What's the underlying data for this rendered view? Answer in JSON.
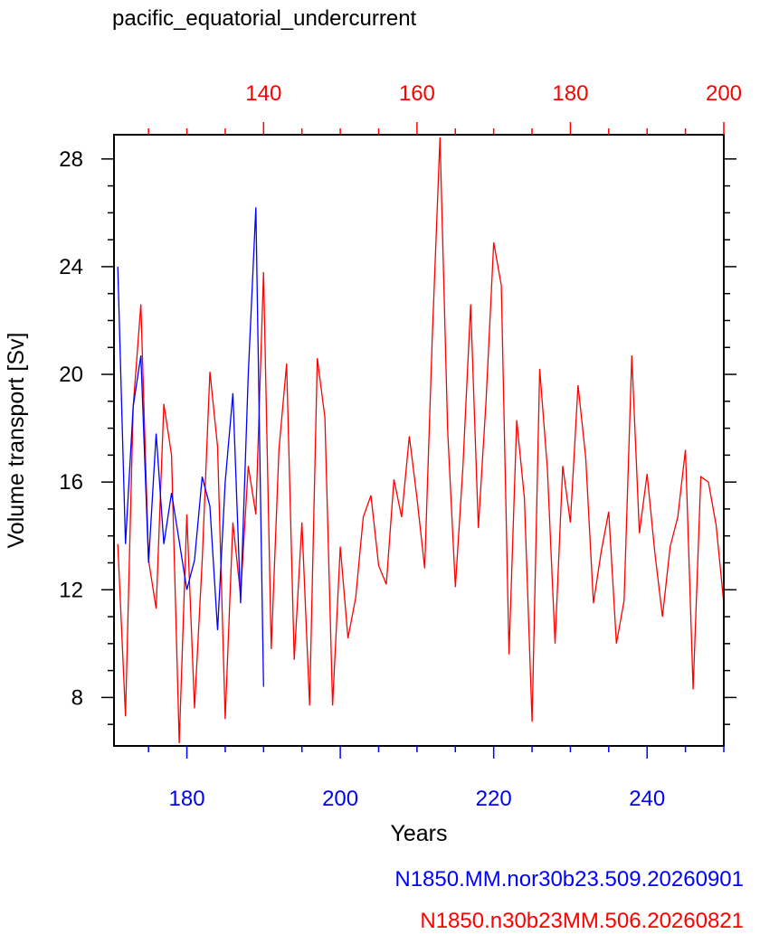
{
  "chart_data": {
    "type": "line",
    "title": "pacific_equatorial_undercurrent",
    "xlabel": "Years",
    "ylabel": "Volume transport [Sv]",
    "ylim": [
      6.2,
      28.9
    ],
    "yticks": [
      8,
      12,
      16,
      20,
      24,
      28
    ],
    "grid": false,
    "legend_placement": "bottom-right, below plot",
    "bottom_axis": {
      "color": "#0000ff",
      "range": [
        170.5,
        250
      ],
      "ticks": [
        180,
        200,
        220,
        240
      ],
      "tick_labels": [
        "180",
        "200",
        "220",
        "240"
      ]
    },
    "top_axis": {
      "color": "#ff0000",
      "range": [
        120.5,
        200
      ],
      "ticks": [
        140,
        160,
        180,
        200
      ],
      "tick_labels": [
        "140",
        "160",
        "180",
        "200"
      ]
    },
    "series": [
      {
        "name": "N1850.MM.nor30b23.509.20260901",
        "color": "#0000ff",
        "axis": "bottom",
        "x": [
          171,
          172,
          173,
          174,
          175,
          176,
          177,
          178,
          179,
          180,
          181,
          182,
          183,
          184,
          185,
          186,
          187,
          188,
          189,
          190
        ],
        "y": [
          24.0,
          13.7,
          18.8,
          20.7,
          13.0,
          17.8,
          13.7,
          15.6,
          13.8,
          12.0,
          13.1,
          16.2,
          15.1,
          10.5,
          16.0,
          19.3,
          11.5,
          20.0,
          26.2,
          8.4
        ]
      },
      {
        "name": "N1850.n30b23MM.506.20260821",
        "color": "#ff0000",
        "axis": "top",
        "x": [
          121,
          122,
          123,
          124,
          125,
          126,
          127,
          128,
          129,
          130,
          131,
          132,
          133,
          134,
          135,
          136,
          137,
          138,
          139,
          140,
          141,
          142,
          143,
          144,
          145,
          146,
          147,
          148,
          149,
          150,
          151,
          152,
          153,
          154,
          155,
          156,
          157,
          158,
          159,
          160,
          161,
          162,
          163,
          164,
          165,
          166,
          167,
          168,
          169,
          170,
          171,
          172,
          173,
          174,
          175,
          176,
          177,
          178,
          179,
          180,
          181,
          182,
          183,
          184,
          185,
          186,
          187,
          188,
          189,
          190,
          191,
          192,
          193,
          194,
          195,
          196,
          197,
          198,
          199,
          200
        ],
        "y": [
          13.7,
          7.3,
          18.8,
          22.6,
          13.1,
          11.3,
          18.9,
          17.0,
          6.3,
          14.8,
          7.6,
          13.1,
          20.1,
          17.3,
          7.2,
          14.5,
          11.8,
          16.6,
          14.8,
          23.8,
          9.8,
          17.2,
          20.4,
          9.4,
          14.5,
          7.7,
          20.6,
          18.4,
          7.7,
          13.6,
          10.2,
          11.7,
          14.7,
          15.5,
          12.9,
          12.2,
          16.1,
          14.7,
          17.7,
          15.4,
          12.8,
          21.4,
          28.8,
          17.9,
          12.1,
          16.6,
          22.6,
          14.3,
          19.0,
          24.9,
          23.3,
          9.6,
          18.3,
          15.4,
          7.1,
          20.2,
          16.5,
          10.0,
          16.6,
          14.5,
          19.6,
          16.9,
          11.5,
          13.4,
          14.9,
          10.0,
          11.6,
          20.7,
          14.1,
          16.3,
          13.4,
          11.0,
          13.6,
          14.7,
          17.2,
          8.3,
          16.2,
          16.0,
          14.4,
          11.5
        ]
      }
    ]
  }
}
